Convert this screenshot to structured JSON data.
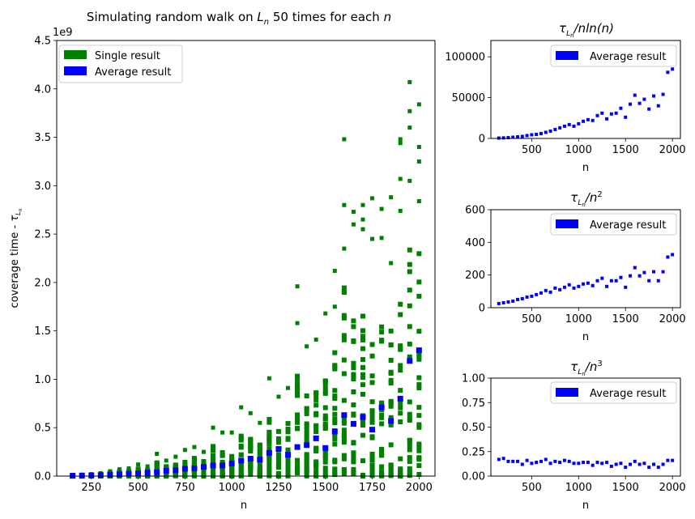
{
  "chart_data": [
    {
      "id": "main",
      "type": "scatter",
      "title_prefix": "Simulating random walk on ",
      "title_var": "L",
      "title_sub": "n",
      "title_suffix": " 50 times for each ",
      "title_n": "n",
      "xlabel": "n",
      "ylabel_prefix": "coverage time - ",
      "ylabel_var": "τ",
      "ylabel_sub": "L",
      "ylabel_subsub": "n",
      "offset_text": "1e9",
      "xlim": [
        65,
        2085
      ],
      "ylim": [
        0,
        4.5
      ],
      "xticks": [
        250,
        500,
        750,
        1000,
        1250,
        1500,
        1750,
        2000
      ],
      "xtick_labels": [
        "250",
        "500",
        "750",
        "1000",
        "1250",
        "1500",
        "1750",
        "2000"
      ],
      "yticks": [
        0,
        0.5,
        1.0,
        1.5,
        2.0,
        2.5,
        3.0,
        3.5,
        4.0,
        4.5
      ],
      "ytick_labels": [
        "0.0",
        "0.5",
        "1.0",
        "1.5",
        "2.0",
        "2.5",
        "3.0",
        "3.5",
        "4.0",
        "4.5"
      ],
      "legend": [
        {
          "label": "Single result",
          "color": "#008000"
        },
        {
          "label": "Average result",
          "color": "#0000ff"
        }
      ],
      "single_result": {
        "color": "#008000",
        "x": [
          150,
          200,
          250,
          300,
          350,
          400,
          450,
          500,
          550,
          600,
          650,
          700,
          750,
          800,
          850,
          900,
          950,
          1000,
          1050,
          1100,
          1150,
          1200,
          1250,
          1300,
          1350,
          1400,
          1450,
          1500,
          1550,
          1600,
          1650,
          1700,
          1750,
          1800,
          1850,
          1900,
          1950,
          2000
        ],
        "max": [
          0.01,
          0.015,
          0.02,
          0.03,
          0.05,
          0.07,
          0.08,
          0.12,
          0.1,
          0.23,
          0.16,
          0.2,
          0.27,
          0.3,
          0.25,
          0.5,
          0.45,
          0.45,
          0.71,
          0.65,
          0.55,
          1.01,
          0.82,
          0.91,
          1.96,
          1.34,
          1.41,
          1.68,
          2.12,
          3.48,
          2.73,
          2.8,
          2.87,
          2.76,
          2.88,
          3.48,
          4.07,
          3.84
        ],
        "outliers": [
          [
            1350,
            1.58
          ],
          [
            1550,
            1.75
          ],
          [
            1600,
            2.8
          ],
          [
            1600,
            2.35
          ],
          [
            1650,
            2.6
          ],
          [
            1700,
            2.65
          ],
          [
            1700,
            2.55
          ],
          [
            1750,
            2.45
          ],
          [
            1800,
            2.46
          ],
          [
            1850,
            2.2
          ],
          [
            1900,
            3.07
          ],
          [
            1900,
            3.44
          ],
          [
            1900,
            2.74
          ],
          [
            1950,
            3.77
          ],
          [
            1950,
            3.6
          ],
          [
            1950,
            3.05
          ],
          [
            2000,
            3.4
          ],
          [
            2000,
            3.25
          ],
          [
            2000,
            2.84
          ]
        ]
      },
      "average_result": {
        "color": "#0000ff",
        "x": [
          150,
          200,
          250,
          300,
          350,
          400,
          450,
          500,
          550,
          600,
          650,
          700,
          750,
          800,
          850,
          900,
          950,
          1000,
          1050,
          1100,
          1150,
          1200,
          1250,
          1300,
          1350,
          1400,
          1450,
          1500,
          1550,
          1600,
          1650,
          1700,
          1750,
          1800,
          1850,
          1900,
          1950,
          2000
        ],
        "y": [
          0.004,
          0.005,
          0.007,
          0.01,
          0.014,
          0.018,
          0.024,
          0.027,
          0.035,
          0.04,
          0.055,
          0.06,
          0.075,
          0.08,
          0.095,
          0.11,
          0.11,
          0.13,
          0.16,
          0.18,
          0.17,
          0.24,
          0.28,
          0.22,
          0.3,
          0.32,
          0.39,
          0.29,
          0.46,
          0.63,
          0.54,
          0.61,
          0.48,
          0.71,
          0.57,
          0.8,
          1.19,
          1.3
        ]
      }
    },
    {
      "id": "nlogn",
      "type": "scatter",
      "title_prefix": "τ",
      "title_sub": "L",
      "title_subsub": "n",
      "title_suffix": "/nln(n)",
      "xlabel": "n",
      "xlim": [
        65,
        2085
      ],
      "ylim": [
        0,
        120000
      ],
      "xticks": [
        500,
        1000,
        1500,
        2000
      ],
      "xtick_labels": [
        "500",
        "1000",
        "1500",
        "2000"
      ],
      "yticks": [
        0,
        50000,
        100000
      ],
      "ytick_labels": [
        "0",
        "50000",
        "100000"
      ],
      "legend": [
        {
          "label": "Average result",
          "color": "#0000ff"
        }
      ],
      "x": [
        150,
        200,
        250,
        300,
        350,
        400,
        450,
        500,
        550,
        600,
        650,
        700,
        750,
        800,
        850,
        900,
        950,
        1000,
        1050,
        1100,
        1150,
        1200,
        1250,
        1300,
        1350,
        1400,
        1450,
        1500,
        1550,
        1600,
        1650,
        1700,
        1750,
        1800,
        1850,
        1900,
        1950,
        2000
      ],
      "y": [
        500,
        700,
        1000,
        1500,
        2000,
        2500,
        3500,
        4500,
        5000,
        6000,
        7500,
        9000,
        11000,
        13000,
        15000,
        17000,
        15000,
        18000,
        21000,
        23000,
        22000,
        28000,
        31000,
        24000,
        30000,
        31000,
        37000,
        26000,
        42000,
        53000,
        43000,
        48000,
        36000,
        52000,
        40000,
        54000,
        81000,
        85000
      ]
    },
    {
      "id": "n2",
      "type": "scatter",
      "title_prefix": "τ",
      "title_sub": "L",
      "title_subsub": "n",
      "title_suffix": "/n",
      "title_sup": "2",
      "xlabel": "n",
      "xlim": [
        65,
        2085
      ],
      "ylim": [
        0,
        600
      ],
      "xticks": [
        500,
        1000,
        1500,
        2000
      ],
      "xtick_labels": [
        "500",
        "1000",
        "1500",
        "2000"
      ],
      "yticks": [
        0,
        200,
        400,
        600
      ],
      "ytick_labels": [
        "0",
        "200",
        "400",
        "600"
      ],
      "legend": [
        {
          "label": "Average result",
          "color": "#0000ff"
        }
      ],
      "x": [
        150,
        200,
        250,
        300,
        350,
        400,
        450,
        500,
        550,
        600,
        650,
        700,
        750,
        800,
        850,
        900,
        950,
        1000,
        1050,
        1100,
        1150,
        1200,
        1250,
        1300,
        1350,
        1400,
        1450,
        1500,
        1550,
        1600,
        1650,
        1700,
        1750,
        1800,
        1850,
        1900,
        1950,
        2000
      ],
      "y": [
        25,
        30,
        35,
        40,
        50,
        55,
        65,
        70,
        80,
        90,
        105,
        95,
        120,
        110,
        125,
        140,
        120,
        130,
        145,
        150,
        135,
        165,
        180,
        130,
        165,
        165,
        185,
        125,
        195,
        245,
        195,
        215,
        165,
        220,
        165,
        220,
        310,
        325
      ]
    },
    {
      "id": "n3",
      "type": "scatter",
      "title_prefix": "τ",
      "title_sub": "L",
      "title_subsub": "n",
      "title_suffix": "/n",
      "title_sup": "3",
      "xlabel": "n",
      "xlim": [
        65,
        2085
      ],
      "ylim": [
        0,
        1.0
      ],
      "xticks": [
        500,
        1000,
        1500,
        2000
      ],
      "xtick_labels": [
        "500",
        "1000",
        "1500",
        "2000"
      ],
      "yticks": [
        0,
        0.25,
        0.5,
        0.75,
        1.0
      ],
      "ytick_labels": [
        "0.00",
        "0.25",
        "0.50",
        "0.75",
        "1.00"
      ],
      "legend": [
        {
          "label": "Average result",
          "color": "#0000ff"
        }
      ],
      "x": [
        150,
        200,
        250,
        300,
        350,
        400,
        450,
        500,
        550,
        600,
        650,
        700,
        750,
        800,
        850,
        900,
        950,
        1000,
        1050,
        1100,
        1150,
        1200,
        1250,
        1300,
        1350,
        1400,
        1450,
        1500,
        1550,
        1600,
        1650,
        1700,
        1750,
        1800,
        1850,
        1900,
        1950,
        2000
      ],
      "y": [
        0.17,
        0.18,
        0.15,
        0.15,
        0.15,
        0.12,
        0.16,
        0.13,
        0.14,
        0.15,
        0.17,
        0.13,
        0.15,
        0.14,
        0.16,
        0.15,
        0.13,
        0.13,
        0.14,
        0.14,
        0.11,
        0.14,
        0.13,
        0.14,
        0.1,
        0.12,
        0.13,
        0.09,
        0.12,
        0.15,
        0.12,
        0.13,
        0.09,
        0.12,
        0.09,
        0.12,
        0.16,
        0.16
      ]
    }
  ]
}
